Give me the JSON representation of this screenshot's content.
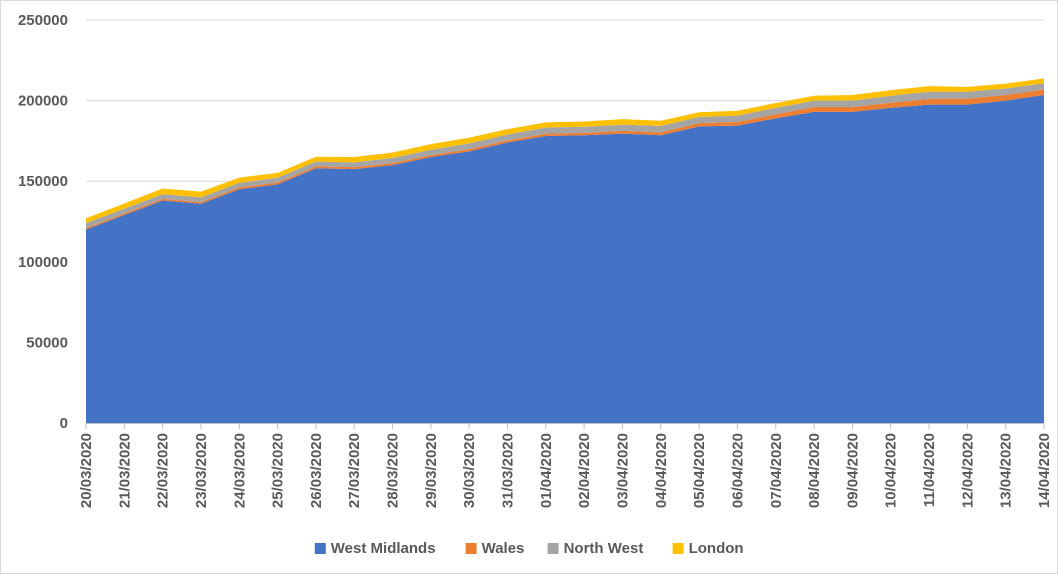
{
  "chart_data": {
    "type": "area",
    "stacked": true,
    "title": "",
    "xlabel": "",
    "ylabel": "",
    "ylim": [
      0,
      250000
    ],
    "yticks": [
      0,
      50000,
      100000,
      150000,
      200000,
      250000
    ],
    "grid": "horizontal",
    "legend_position": "bottom",
    "categories": [
      "20/03/2020",
      "21/03/2020",
      "22/03/2020",
      "23/03/2020",
      "24/03/2020",
      "25/03/2020",
      "26/03/2020",
      "27/03/2020",
      "28/03/2020",
      "29/03/2020",
      "30/03/2020",
      "31/03/2020",
      "01/04/2020",
      "02/04/2020",
      "03/04/2020",
      "04/04/2020",
      "05/04/2020",
      "06/04/2020",
      "07/04/2020",
      "08/04/2020",
      "09/04/2020",
      "10/04/2020",
      "11/04/2020",
      "12/04/2020",
      "13/04/2020",
      "14/04/2020"
    ],
    "series": [
      {
        "name": "West Midlands",
        "color": "#4472C4",
        "values": [
          120000,
          129000,
          138000,
          136000,
          145000,
          148000,
          158000,
          157500,
          160000,
          165000,
          168500,
          174000,
          178000,
          178500,
          179500,
          178500,
          184000,
          184500,
          189000,
          193000,
          193000,
          195500,
          197500,
          197500,
          200000,
          203500
        ]
      },
      {
        "name": "Wales",
        "color": "#ED7D31",
        "values": [
          1000,
          1000,
          1000,
          1000,
          1200,
          1200,
          1200,
          1200,
          1200,
          1200,
          1300,
          1300,
          1500,
          1500,
          1700,
          1800,
          2000,
          2200,
          2500,
          3000,
          3000,
          3200,
          3500,
          3700,
          3500,
          3500
        ]
      },
      {
        "name": "North West",
        "color": "#A5A5A5",
        "values": [
          3000,
          3000,
          3000,
          3000,
          2800,
          3000,
          3000,
          3000,
          3300,
          3300,
          3700,
          3700,
          3800,
          3800,
          3800,
          4000,
          3800,
          4000,
          4000,
          4000,
          4000,
          4300,
          4500,
          4300,
          4000,
          3800
        ]
      },
      {
        "name": "London",
        "color": "#FFC000",
        "values": [
          3000,
          3200,
          3500,
          3500,
          3200,
          3000,
          3000,
          3300,
          3300,
          3500,
          3500,
          3300,
          3200,
          3200,
          3500,
          3200,
          3000,
          3000,
          3000,
          3000,
          3500,
          3500,
          3500,
          3000,
          3000,
          3000
        ]
      }
    ]
  }
}
